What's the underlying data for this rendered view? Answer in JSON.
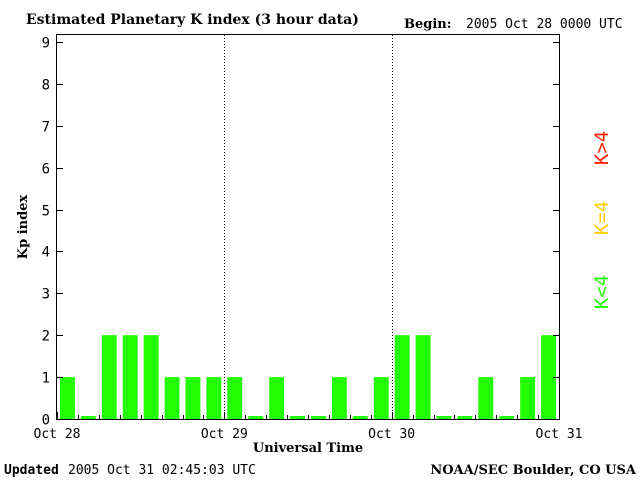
{
  "header": {
    "title": "Estimated Planetary K index (3 hour data)",
    "begin_label": "Begin:",
    "begin_value": "2005 Oct 28 0000 UTC"
  },
  "footer": {
    "updated_label": "Updated",
    "updated_value": "2005 Oct 31 02:45:03 UTC",
    "source": "NOAA/SEC Boulder, CO USA"
  },
  "legend": {
    "high": "K>4",
    "mid": "K=4",
    "low": "K<4"
  },
  "colors": {
    "low": "#22ff00",
    "mid": "#ffcc00",
    "high": "#ff2200",
    "axis": "#000000"
  },
  "chart_data": {
    "type": "bar",
    "title": "Estimated Planetary K index (3 hour data)",
    "xlabel": "Universal Time",
    "ylabel": "Kp index",
    "ylim": [
      0,
      9
    ],
    "yticks": [
      0,
      1,
      2,
      3,
      4,
      5,
      6,
      7,
      8,
      9
    ],
    "day_labels": [
      "Oct 28",
      "Oct 29",
      "Oct 30",
      "Oct 31"
    ],
    "interval_hours": 3,
    "values": [
      1,
      0,
      2,
      2,
      2,
      1,
      1,
      1,
      1,
      0,
      1,
      0,
      0,
      1,
      0,
      1,
      2,
      2,
      0,
      0,
      1,
      0,
      1,
      2
    ],
    "grid": false,
    "day_separators": true
  }
}
